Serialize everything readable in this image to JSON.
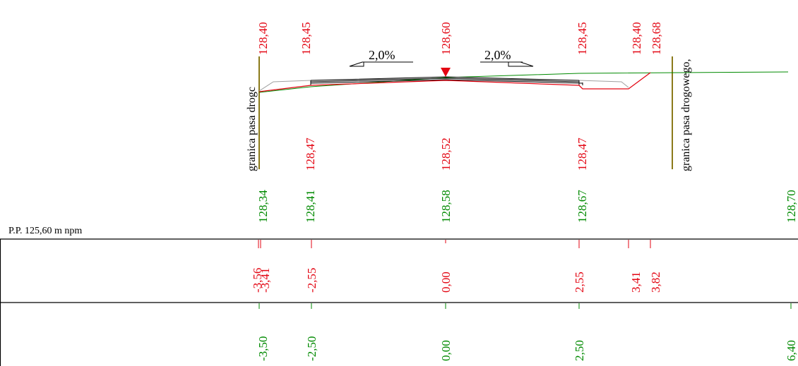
{
  "datum": {
    "label": "P.P. 125,60 m npm"
  },
  "boundary_labels": {
    "left": "granica pasa drogc",
    "right": "granica pasa drogowego,"
  },
  "slopes": {
    "left": "2,0%",
    "right": "2,0%"
  },
  "design_top_levels": [
    "128,40",
    "128,45",
    "128,60",
    "128,45",
    "128,40",
    "128,68"
  ],
  "design_top_partial": "128,40",
  "design_mid_levels": [
    "128,47",
    "128,52",
    "128,47"
  ],
  "terrain_levels": [
    "128,34",
    "128,41",
    "128,58",
    "128,67",
    "128,70"
  ],
  "design_offsets": [
    "-3,41",
    "-2,55",
    "0,00",
    "2,55",
    "3,41",
    "3,82"
  ],
  "design_offset_partial": "-3,56",
  "terrain_offsets": [
    "-3,50",
    "-2,50",
    "0,00",
    "2,50",
    "6,40"
  ],
  "colors": {
    "design": "#e30613",
    "terrain": "#008a00",
    "boundary": "#8b7a1a",
    "structure": "#000000"
  }
}
